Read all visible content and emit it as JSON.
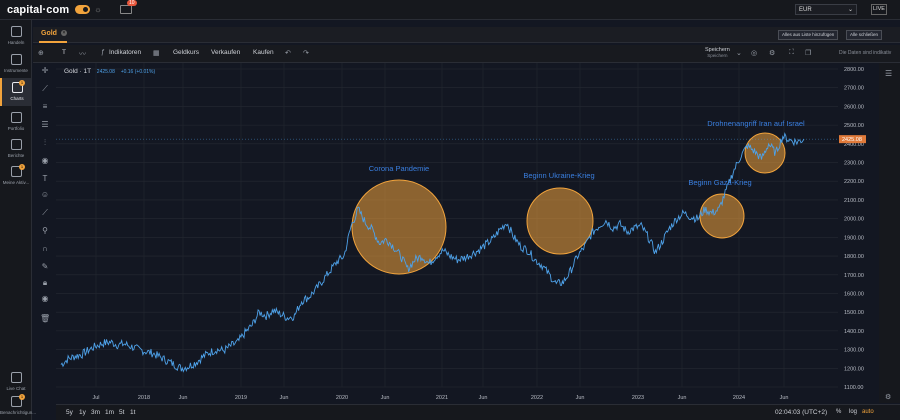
{
  "header": {
    "logo": "capital·com",
    "notif_count": "10",
    "currency": "EUR",
    "live": "LIVE"
  },
  "sidebar": {
    "items": [
      {
        "label": "Handeln",
        "icon": "trend-icon"
      },
      {
        "label": "Instrumente",
        "icon": "grid-icon"
      },
      {
        "label": "Charts",
        "icon": "chart-icon",
        "active": true,
        "badge": "1"
      },
      {
        "label": "Portfolio",
        "icon": "briefcase-icon"
      },
      {
        "label": "Berichte",
        "icon": "report-icon"
      },
      {
        "label": "Meine Aktiv...",
        "icon": "activity-icon",
        "badge": "1"
      }
    ],
    "bottom": [
      {
        "label": "Live Chat",
        "icon": "chat-icon"
      },
      {
        "label": "Benachrichtigun...",
        "icon": "bell-icon",
        "badge": "1"
      }
    ]
  },
  "tabs": {
    "active": "Gold",
    "add_to_list": "Alles aus Liste hinzufügen",
    "close_all": "Alle schließen"
  },
  "toolbar": {
    "interval": "T",
    "indicators": "Indikatoren",
    "buy_sell_price": "Geldkurs",
    "sell": "Verkaufen",
    "buy": "Kaufen",
    "save": "Speichern",
    "save_sub": "Speichern",
    "readonly_note": "Die Daten sind indikativ"
  },
  "legend": {
    "title": "Gold · 1T",
    "price": "2425.08",
    "change": "+0.16 (+0.01%)"
  },
  "chart_data": {
    "type": "line",
    "x_ticks": [
      "Jul",
      "2018",
      "Jun",
      "2019",
      "Jun",
      "2020",
      "Jun",
      "2021",
      "Jun",
      "2022",
      "Jun",
      "2023",
      "Jun",
      "2024",
      "Jun"
    ],
    "y_ticks": [
      2800,
      2700,
      2600,
      2500,
      2400,
      2300,
      2200,
      2100,
      2000,
      1900,
      1800,
      1700,
      1600,
      1500,
      1400,
      1300,
      1200,
      1100
    ],
    "ylim": [
      1100,
      2800
    ],
    "last_price_label": "2425.08",
    "series": [
      {
        "values": [
          1220,
          1250,
          1265,
          1275,
          1300,
          1320,
          1335,
          1340,
          1325,
          1330,
          1315,
          1300,
          1290,
          1280,
          1260,
          1240,
          1220,
          1200,
          1210,
          1230,
          1260,
          1285,
          1300,
          1295,
          1320,
          1340,
          1390,
          1430,
          1500,
          1480,
          1510,
          1490,
          1470,
          1480,
          1560,
          1580,
          1620,
          1670,
          1720,
          1770,
          1800,
          1960,
          2050,
          1980,
          1940,
          1870,
          1890,
          1850,
          1800,
          1730,
          1780,
          1800,
          1760,
          1800,
          1830,
          1800,
          1780,
          1790,
          1810,
          1830,
          1860,
          1890,
          1940,
          1980,
          1900,
          1850,
          1830,
          1780,
          1750,
          1700,
          1650,
          1660,
          1720,
          1800,
          1850,
          1920,
          1960,
          1990,
          1950,
          1970,
          1930,
          1950,
          1960,
          1900,
          1820,
          1880,
          1950,
          2000,
          2030,
          2010,
          2000,
          2050,
          2030,
          2050,
          2150,
          2250,
          2330,
          2390,
          2360,
          2320,
          2400,
          2350,
          2440,
          2420,
          2410,
          2425
        ]
      }
    ],
    "annotations": [
      {
        "label": "Corona Pandemie"
      },
      {
        "label": "Beginn Ukraine-Krieg"
      },
      {
        "label": "Beginn Gaza-Krieg"
      },
      {
        "label": "Drohnenangriff Iran auf Israel"
      }
    ]
  },
  "bottom": {
    "periods": [
      "5y",
      "1y",
      "3m",
      "1m",
      "5t",
      "1t"
    ],
    "clock": "02:04:03 (UTC+2)",
    "pct": "%",
    "log": "log",
    "auto": "auto"
  },
  "colors": {
    "accent": "#f1a33c",
    "line": "#4ea1e8",
    "annotation_text": "#3a7fe0"
  }
}
